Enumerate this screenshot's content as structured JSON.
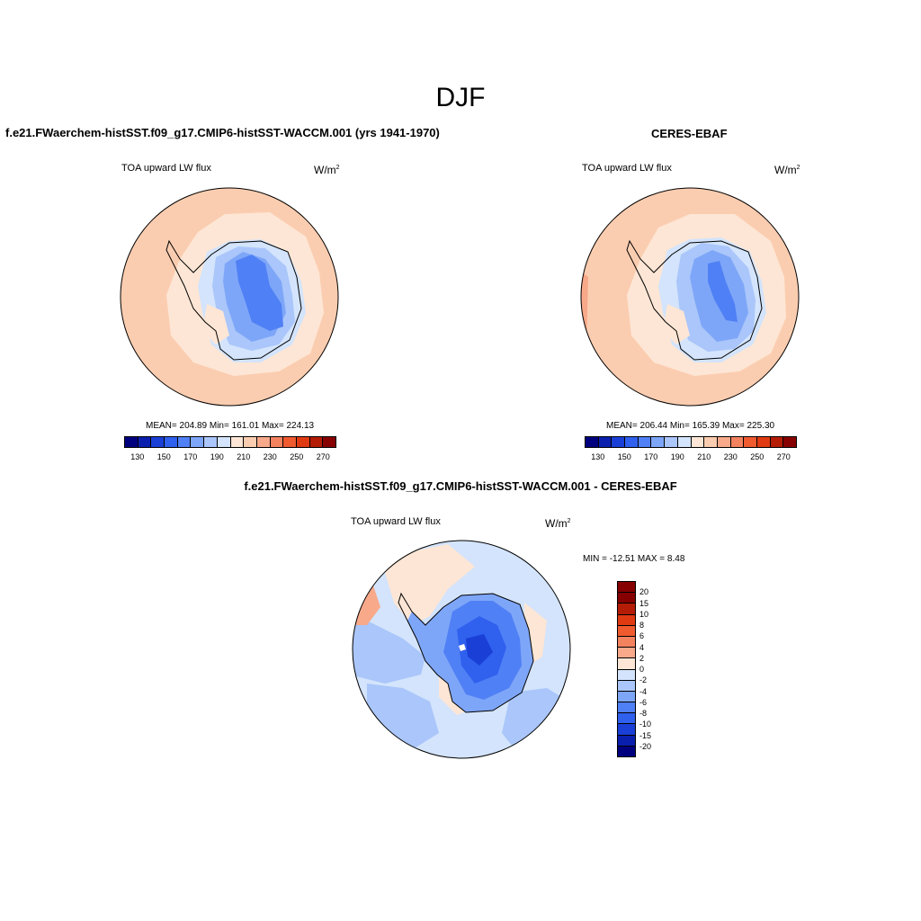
{
  "title": "DJF",
  "panels": [
    {
      "title": "f.e21.FWaerchem-histSST.f09_g17.CMIP6-histSST-WACCM.001 (yrs 1941-1970)",
      "variable": "TOA upward LW flux",
      "units": "W/m",
      "units_exp": "2",
      "stats": "MEAN= 204.89  Min= 161.01  Max= 224.13"
    },
    {
      "title": "CERES-EBAF",
      "variable": "TOA upward LW flux",
      "units": "W/m",
      "units_exp": "2",
      "stats": "MEAN= 206.44  Min= 165.39  Max= 225.30"
    },
    {
      "title": "f.e21.FWaerchem-histSST.f09_g17.CMIP6-histSST-WACCM.001 - CERES-EBAF",
      "variable": "TOA upward LW flux",
      "units": "W/m",
      "units_exp": "2",
      "stats": "MIN = -12.51 MAX =   8.48"
    }
  ],
  "colorbar_abs": {
    "colors": [
      "#00007f",
      "#0a1fae",
      "#1a3fd6",
      "#2f60ee",
      "#5080f5",
      "#7ea6f8",
      "#aac6fa",
      "#d3e4fc",
      "#fde6d5",
      "#fbcdb0",
      "#f7a98a",
      "#f3825f",
      "#ef5a2f",
      "#df3a12",
      "#b51c05",
      "#870000"
    ],
    "tick_labels": [
      "130",
      "150",
      "170",
      "190",
      "210",
      "230",
      "250",
      "270"
    ]
  },
  "colorbar_diff": {
    "colors": [
      "#870000",
      "#b51c05",
      "#df3a12",
      "#ef5a2f",
      "#f3825f",
      "#f7a98a",
      "#fde6d5",
      "#d3e4fc",
      "#aac6fa",
      "#7ea6f8",
      "#5080f5",
      "#2f60ee",
      "#1a3fd6",
      "#0a1fae",
      "#00007f"
    ],
    "tick_labels": [
      "20",
      "15",
      "10",
      "8",
      "6",
      "4",
      "2",
      "0",
      "-2",
      "-4",
      "-6",
      "-8",
      "-10",
      "-15",
      "-20"
    ]
  }
}
